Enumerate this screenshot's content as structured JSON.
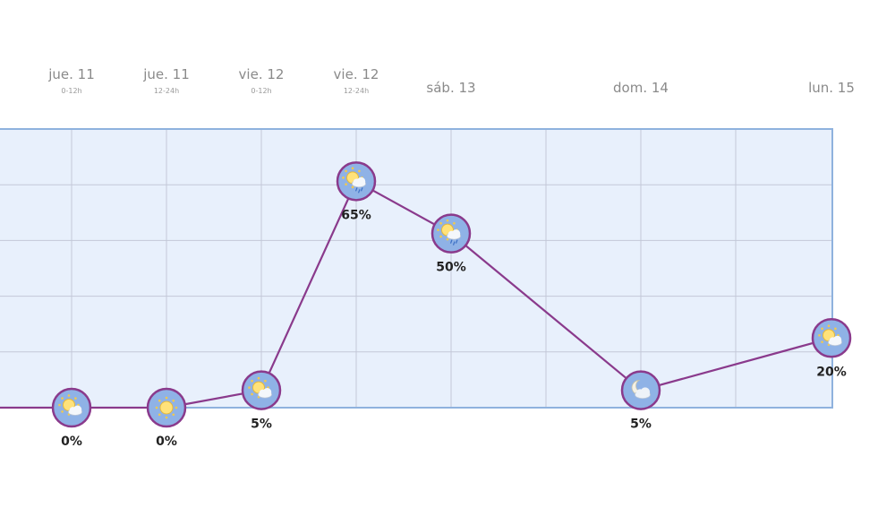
{
  "colors": {
    "plot_bg": "#e8f0fc",
    "plot_border": "#8fb2de",
    "grid": "#c3c8d8",
    "line": "#8a3a8c",
    "marker_ring": "#8a3a8c",
    "marker_fill": "#8fb2e6",
    "label": "#222222"
  },
  "chart_data": {
    "type": "line",
    "title": "",
    "xlabel": "",
    "ylabel": "",
    "ylim": [
      0,
      100
    ],
    "grid": true,
    "legend": "none",
    "categories": [
      {
        "day": "jue. 11",
        "sub": "0-12h"
      },
      {
        "day": "jue. 11",
        "sub": "12-24h"
      },
      {
        "day": "vie. 12",
        "sub": "0-12h"
      },
      {
        "day": "vie. 12",
        "sub": "12-24h"
      },
      {
        "day": "sáb. 13",
        "sub": ""
      },
      {
        "day": "dom. 14",
        "sub": ""
      },
      {
        "day": "lun. 15",
        "sub": ""
      }
    ],
    "series": [
      {
        "values": [
          0,
          0,
          5,
          65,
          50,
          5,
          20
        ],
        "labels": [
          "0%",
          "0%",
          "5%",
          "65%",
          "50%",
          "5%",
          "20%"
        ],
        "icons": [
          "sun-cloud-icon",
          "sun-icon",
          "sun-cloud-icon",
          "sun-cloud-rain-icon",
          "sun-cloud-rain-icon",
          "cloud-moon-icon",
          "sun-cloud-icon"
        ]
      }
    ]
  }
}
